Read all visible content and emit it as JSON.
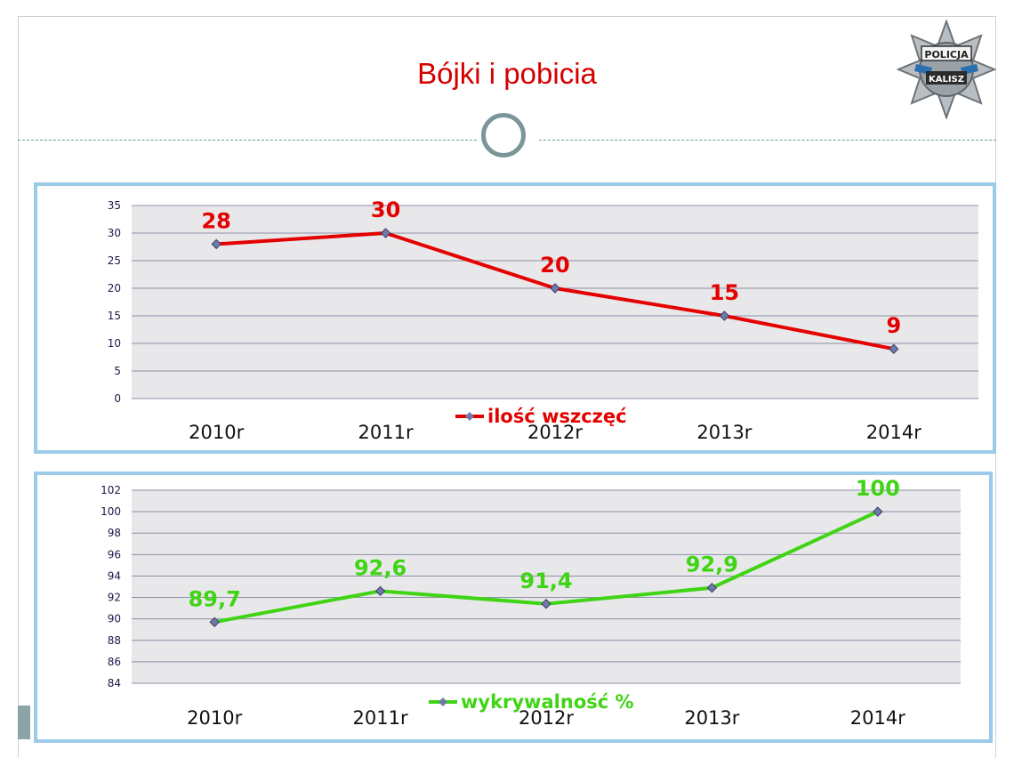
{
  "slide": {
    "title": "Bójki i pobicia",
    "badge": {
      "icon": "police-star-badge-icon",
      "line1": "POLICJA",
      "line2": "KALISZ"
    }
  },
  "colors": {
    "title": "#d40000",
    "series_red": "#e50000",
    "series_green": "#3fd414",
    "plot_bg": "#e8e8ea",
    "panel_border": "#9ccbea"
  },
  "chart_data": [
    {
      "type": "line",
      "categories": [
        "2010r",
        "2011r",
        "2012r",
        "2013r",
        "2014r"
      ],
      "series": [
        {
          "name": "ilość wszczęć",
          "values": [
            28,
            30,
            20,
            15,
            9
          ],
          "color": "#e50000"
        }
      ],
      "data_labels": [
        "28",
        "30",
        "20",
        "15",
        "9"
      ],
      "ylim": [
        0,
        35
      ],
      "yticks": [
        "0",
        "5",
        "10",
        "15",
        "20",
        "25",
        "30",
        "35"
      ],
      "grid": true,
      "legend": "bottom"
    },
    {
      "type": "line",
      "categories": [
        "2010r",
        "2011r",
        "2012r",
        "2013r",
        "2014r"
      ],
      "series": [
        {
          "name": "wykrywalność %",
          "values": [
            89.7,
            92.6,
            91.4,
            92.9,
            100
          ],
          "color": "#3fd414"
        }
      ],
      "data_labels": [
        "89,7",
        "92,6",
        "91,4",
        "92,9",
        "100"
      ],
      "ylim": [
        84,
        102
      ],
      "yticks": [
        "84",
        "86",
        "88",
        "90",
        "92",
        "94",
        "96",
        "98",
        "100",
        "102"
      ],
      "grid": true,
      "legend": "bottom"
    }
  ]
}
